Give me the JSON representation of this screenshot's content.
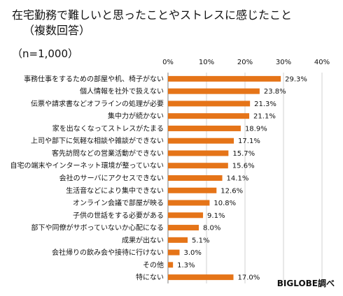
{
  "title_line1": "在宅勤務で難しいと思ったことやストレスに感じたこと",
  "title_line2": "（複数回答）",
  "sample_size": "（n=1,000）",
  "source": "BIGLOBE調べ",
  "colors": {
    "bar": "#E57418",
    "grid": "#D0D0D0",
    "axis": "#7F7F7F"
  },
  "chart_data": {
    "type": "bar",
    "orientation": "horizontal",
    "categories": [
      "事務仕事をするための部屋や机、椅子がない",
      "個人情報を社外で扱えない",
      "伝票や請求書などオフラインの処理が必要",
      "集中力が続かない",
      "家を出なくなってストレスがたまる",
      "上司や部下に気軽な相談や雑談ができない",
      "客先訪問などの営業活動ができない",
      "自宅の端末やインターネット環境が整っていない",
      "会社のサーバにアクセスできない",
      "生活音などにより集中できない",
      "オンライン会議で部屋が映る",
      "子供の世話をする必要がある",
      "部下や同僚がサボっていないか心配になる",
      "成果が出ない",
      "会社帰りの飲み会や接待に行けない",
      "その他",
      "特にない"
    ],
    "values": [
      29.3,
      23.8,
      21.3,
      21.1,
      18.9,
      17.1,
      15.7,
      15.6,
      14.1,
      12.6,
      10.8,
      9.1,
      8.0,
      5.1,
      3.0,
      1.3,
      17.0
    ],
    "value_labels": [
      "29.3%",
      "23.8%",
      "21.3%",
      "21.1%",
      "18.9%",
      "17.1%",
      "15.7%",
      "15.6%",
      "14.1%",
      "12.6%",
      "10.8%",
      "9.1%",
      "8.0%",
      "5.1%",
      "3.0%",
      "1.3%",
      "17.0%"
    ],
    "xlim": [
      0,
      40
    ],
    "xticks": [
      0,
      10,
      20,
      30,
      40
    ],
    "xtick_labels": [
      "0%",
      "10%",
      "20%",
      "30%",
      "40%"
    ],
    "grid": true,
    "legend": "none"
  }
}
